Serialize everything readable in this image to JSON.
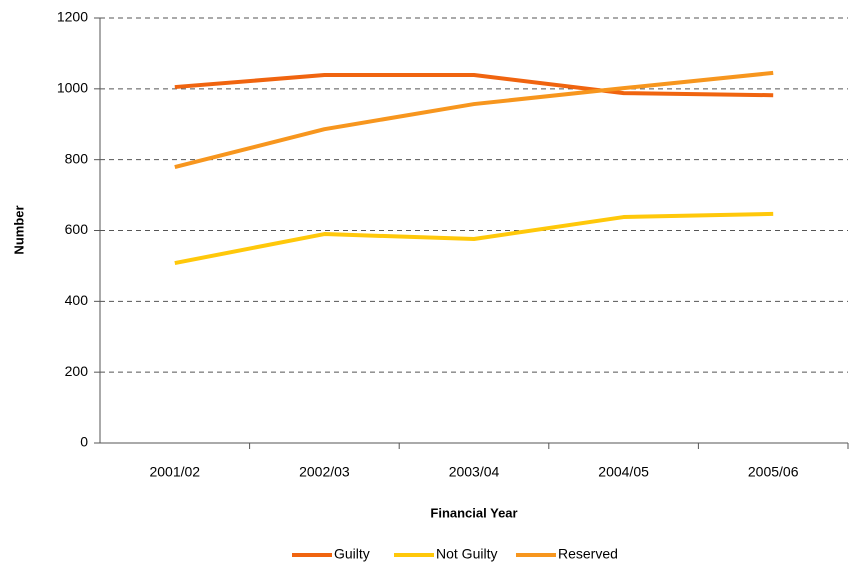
{
  "chart_data": {
    "type": "line",
    "x_label": "Financial Year",
    "y_label": "Number",
    "categories": [
      "2001/02",
      "2002/03",
      "2003/04",
      "2004/05",
      "2005/06"
    ],
    "series": [
      {
        "name": "Guilty",
        "color": "#f0640f",
        "values": [
          1005,
          1039,
          1039,
          988,
          982
        ]
      },
      {
        "name": "Not Guilty",
        "color": "#ffc80a",
        "values": [
          508,
          590,
          576,
          638,
          647
        ]
      },
      {
        "name": "Reserved",
        "color": "#f7961e",
        "values": [
          779,
          886,
          957,
          1002,
          1045
        ]
      }
    ],
    "ylim": [
      0,
      1200
    ],
    "yticks": [
      0,
      200,
      400,
      600,
      800,
      1000,
      1200
    ],
    "grid": true,
    "legend": "bottom"
  }
}
